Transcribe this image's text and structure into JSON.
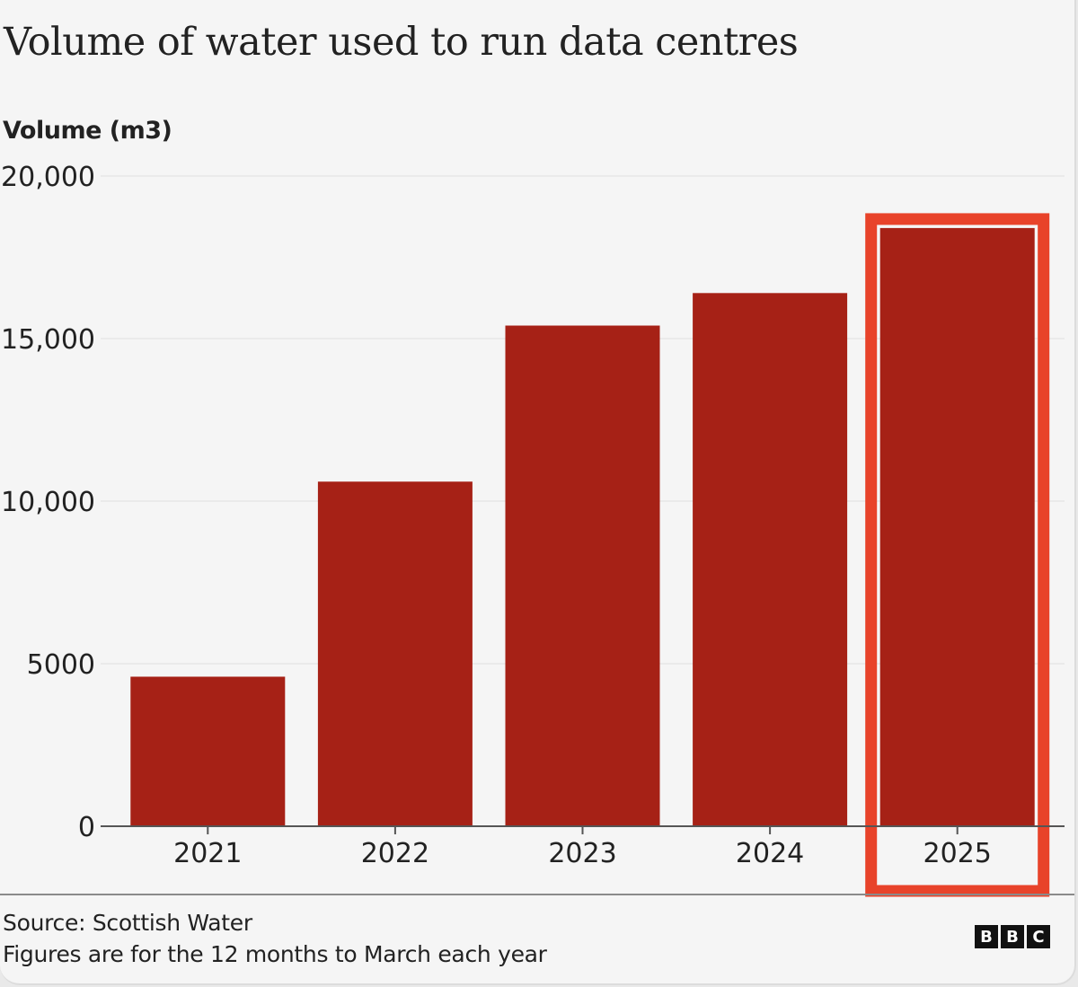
{
  "chart_data": {
    "type": "bar",
    "title": "Volume of water used to run data centres",
    "xlabel": "",
    "ylabel": "Volume (m3)",
    "categories": [
      "2021",
      "2022",
      "2023",
      "2024",
      "2025"
    ],
    "values": [
      4600,
      10600,
      15400,
      16400,
      18400
    ],
    "ylim": [
      0,
      20000
    ],
    "yticks": [
      0,
      5000,
      10000,
      15000,
      20000
    ],
    "ytick_labels": [
      "0",
      "5000",
      "10,000",
      "15,000",
      "20,000"
    ],
    "grid": true,
    "legend": "none",
    "highlighted_category": "2025",
    "colors": {
      "bar": "#a62116",
      "highlight_box": "#e8432a",
      "grid": "#e6e6e6",
      "axis": "#555555"
    }
  },
  "footer": {
    "source": "Source: Scottish Water",
    "note": "Figures are for the 12 months to March each year",
    "logo_letters": [
      "B",
      "B",
      "C"
    ]
  }
}
